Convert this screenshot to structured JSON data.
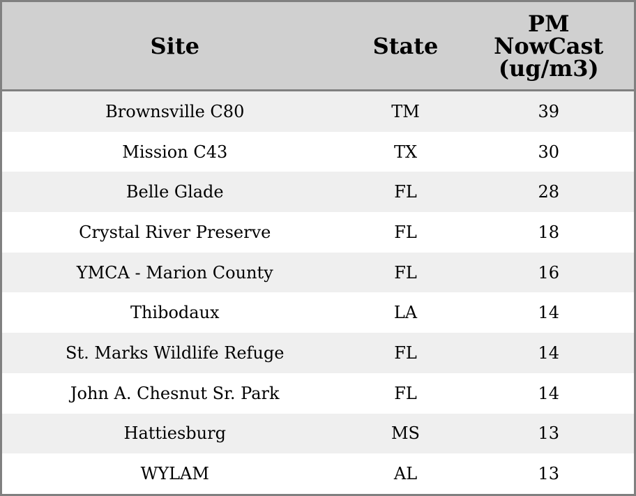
{
  "chart_data": {
    "type": "table",
    "columns": [
      "Site",
      "State",
      "PM NowCast (ug/m3)"
    ],
    "rows": [
      [
        "Brownsville C80",
        "TM",
        "39"
      ],
      [
        "Mission C43",
        "TX",
        "30"
      ],
      [
        "Belle Glade",
        "FL",
        "28"
      ],
      [
        "Crystal River Preserve",
        "FL",
        "18"
      ],
      [
        "YMCA - Marion County",
        "FL",
        "16"
      ],
      [
        "Thibodaux",
        "LA",
        "14"
      ],
      [
        "St. Marks Wildlife Refuge",
        "FL",
        "14"
      ],
      [
        "John A. Chesnut Sr. Park",
        "FL",
        "14"
      ],
      [
        "Hattiesburg",
        "MS",
        "13"
      ],
      [
        "WYLAM",
        "AL",
        "13"
      ]
    ],
    "colors": {
      "header_bg": "#d0d0d0",
      "stripe": "#efefef",
      "border": "#808080"
    }
  }
}
